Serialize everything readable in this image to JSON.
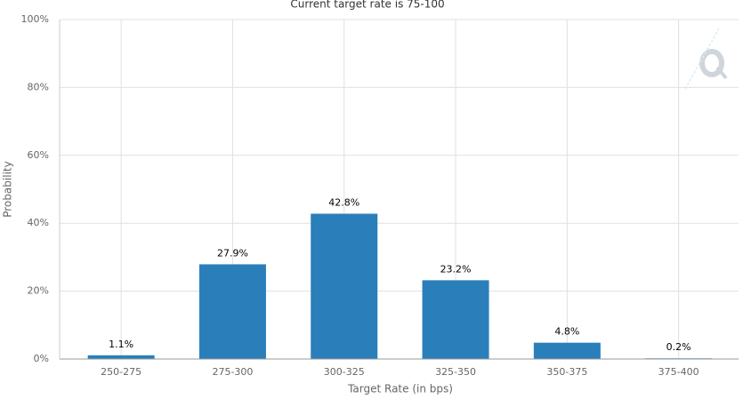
{
  "chart_data": {
    "type": "bar",
    "title": "Current target rate is 75-100",
    "x_label": "Target Rate (in bps)",
    "y_label": "Probability",
    "categories": [
      "250-275",
      "275-300",
      "300-325",
      "325-350",
      "350-375",
      "375-400"
    ],
    "values": [
      1.1,
      27.9,
      42.8,
      23.2,
      4.8,
      0.2
    ],
    "value_labels": [
      "1.1%",
      "27.9%",
      "42.8%",
      "23.2%",
      "4.8%",
      "0.2%"
    ],
    "color": "#2a7fba",
    "ylim": [
      0,
      100
    ],
    "yticks": [
      {
        "value": 0,
        "label": "0%"
      },
      {
        "value": 20,
        "label": "20%"
      },
      {
        "value": 40,
        "label": "40%"
      },
      {
        "value": 60,
        "label": "60%"
      },
      {
        "value": 80,
        "label": "80%"
      },
      {
        "value": 100,
        "label": "100%"
      }
    ],
    "grid": true
  }
}
